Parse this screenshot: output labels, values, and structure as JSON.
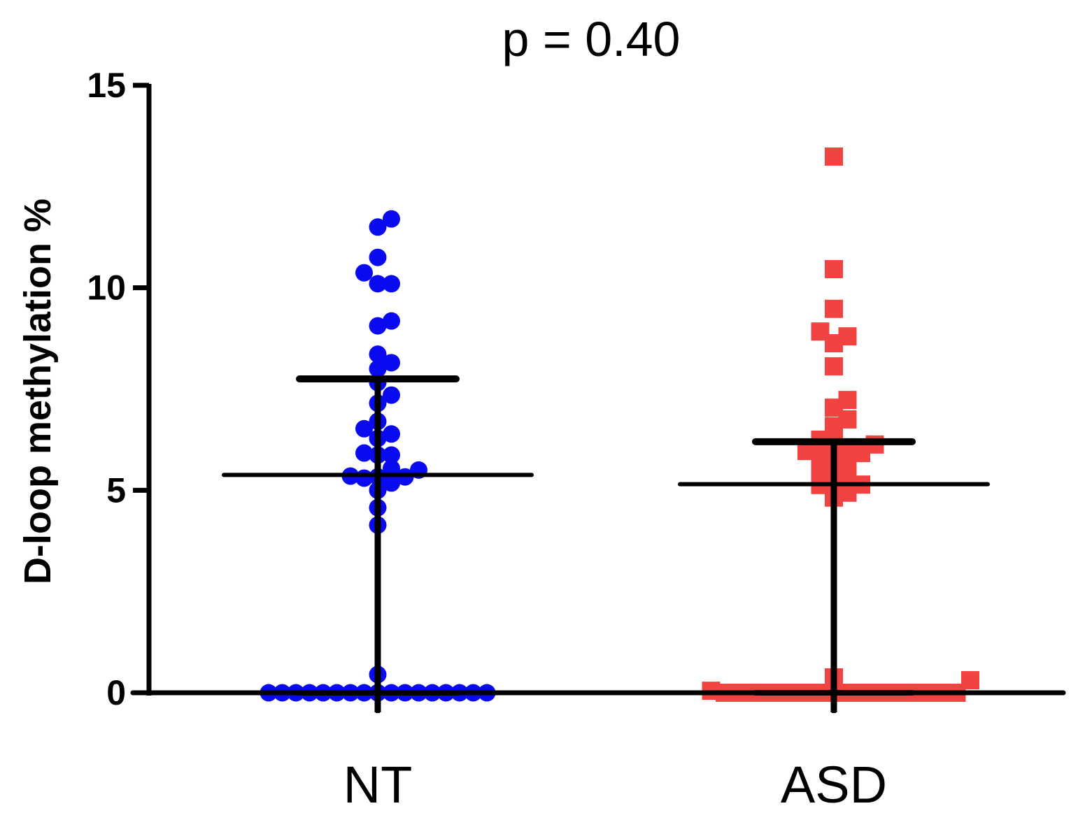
{
  "chart_data": {
    "type": "scatter",
    "subtype": "dot-plot with mean and SD",
    "title": "p = 0.40",
    "xlabel": "",
    "ylabel": "D-loop methylation %",
    "ylim": [
      0,
      15
    ],
    "yticks": [
      "0",
      "5",
      "10",
      "15"
    ],
    "categories": [
      "NT",
      "ASD"
    ],
    "grid": false,
    "legend": "none",
    "series": [
      {
        "category": "NT",
        "marker": "circle",
        "color": "#0a0af0",
        "mean": 5.38,
        "sd_upper": 7.75,
        "sd_lower": 0,
        "values": [
          11.7,
          11.5,
          10.75,
          10.37,
          10.1,
          10.1,
          9.18,
          9.06,
          8.36,
          8.15,
          8.0,
          7.66,
          7.35,
          7.15,
          6.7,
          6.52,
          6.39,
          6.28,
          5.92,
          5.87,
          5.87,
          5.54,
          5.5,
          5.35,
          5.33,
          5.33,
          5.3,
          5.18,
          5.0,
          4.57,
          4.14,
          0.45,
          0,
          0,
          0,
          0,
          0,
          0,
          0,
          0,
          0,
          0,
          0,
          0,
          0,
          0,
          0,
          0,
          0
        ]
      },
      {
        "category": "ASD",
        "marker": "square",
        "color": "#f24343",
        "mean": 5.15,
        "sd_upper": 6.2,
        "sd_lower": 0,
        "values": [
          13.24,
          10.46,
          9.48,
          8.92,
          8.8,
          8.63,
          8.06,
          7.23,
          7.04,
          6.75,
          6.58,
          6.25,
          6.15,
          6.13,
          6.06,
          5.97,
          5.92,
          5.92,
          5.82,
          5.68,
          5.51,
          5.49,
          5.35,
          5.16,
          5.14,
          5.13,
          4.94,
          4.82,
          0.38,
          0.31,
          0.05,
          0,
          0,
          0,
          0,
          0,
          0,
          0,
          0,
          0,
          0,
          0,
          0,
          0,
          0,
          0,
          0,
          0,
          0
        ]
      }
    ]
  }
}
